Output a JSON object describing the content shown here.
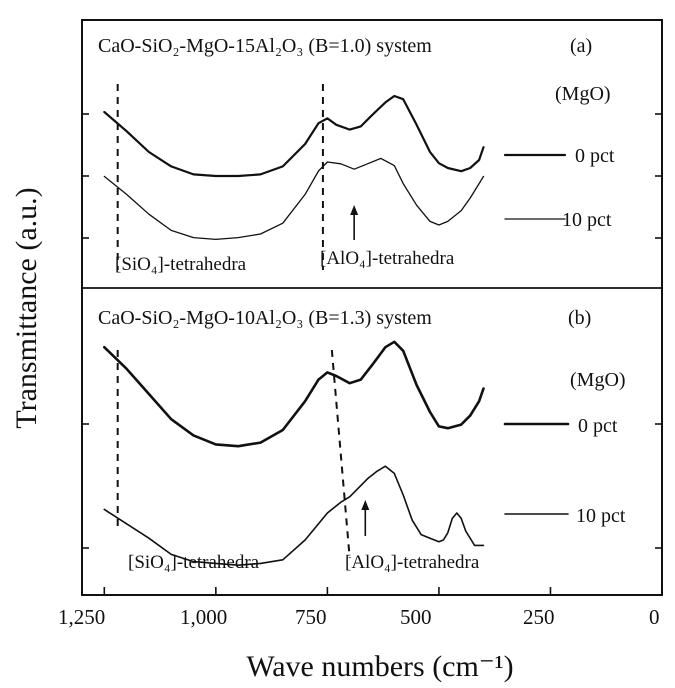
{
  "chart_data": {
    "type": "line",
    "xlabel": "Wave numbers (cm⁻¹)",
    "ylabel": "Transmittance (a.u.)",
    "xlim": [
      1300,
      0
    ],
    "x_reversed": true,
    "x_ticks": [
      "1,250",
      "1,000",
      "750",
      "500",
      "250",
      "0"
    ],
    "x_tick_values": [
      1250,
      1000,
      750,
      500,
      250,
      0
    ],
    "y_ticks_labeled": false,
    "grid": false,
    "panels": [
      {
        "title": "CaO-SiO₂-MgO-15Al₂O₃ (B=1.0) system",
        "tag": "(a)",
        "legend_title": "(MgO)",
        "dashed_markers_x": [
          1220,
          760
        ],
        "annotations": [
          {
            "text": "[SiO₄]-tetrahedra"
          },
          {
            "text": "[AlO₄]-tetrahedra",
            "arrow_x": 690
          }
        ],
        "series": [
          {
            "name": "0 pct",
            "x": [
              1250,
              1200,
              1150,
              1100,
              1050,
              1000,
              950,
              900,
              850,
              800,
              770,
              750,
              730,
              700,
              675,
              650,
              620,
              600,
              580,
              550,
              520,
              500,
              480,
              450,
              430,
              410,
              400
            ],
            "y": [
              0.8,
              0.68,
              0.55,
              0.46,
              0.41,
              0.4,
              0.4,
              0.41,
              0.46,
              0.6,
              0.73,
              0.76,
              0.72,
              0.69,
              0.71,
              0.78,
              0.86,
              0.9,
              0.88,
              0.72,
              0.55,
              0.48,
              0.45,
              0.43,
              0.45,
              0.5,
              0.58
            ]
          },
          {
            "name": "10 pct",
            "x": [
              1250,
              1200,
              1150,
              1100,
              1050,
              1000,
              950,
              900,
              850,
              800,
              770,
              750,
              720,
              690,
              660,
              630,
              600,
              580,
              550,
              520,
              500,
              480,
              450,
              430,
              410,
              400
            ],
            "y": [
              0.52,
              0.42,
              0.31,
              0.22,
              0.18,
              0.17,
              0.18,
              0.2,
              0.26,
              0.42,
              0.55,
              0.6,
              0.59,
              0.56,
              0.59,
              0.62,
              0.58,
              0.48,
              0.36,
              0.27,
              0.25,
              0.27,
              0.33,
              0.4,
              0.48,
              0.52
            ]
          }
        ]
      },
      {
        "title": "CaO-SiO₂-MgO-10Al₂O₃ (B=1.3) system",
        "tag": "(b)",
        "legend_title": "(MgO)",
        "dashed_markers_x": [
          1220,
          740
        ],
        "annotations": [
          {
            "text": "[SiO₄]-tetrahedra"
          },
          {
            "text": "[AlO₄]-tetrahedra",
            "arrow_x": 665
          }
        ],
        "series": [
          {
            "name": "0 pct",
            "x": [
              1250,
              1200,
              1150,
              1100,
              1050,
              1000,
              950,
              900,
              850,
              800,
              770,
              750,
              730,
              700,
              675,
              650,
              620,
              600,
              580,
              550,
              520,
              500,
              480,
              450,
              430,
              410,
              400
            ],
            "y": [
              0.96,
              0.84,
              0.7,
              0.56,
              0.47,
              0.42,
              0.41,
              0.43,
              0.5,
              0.66,
              0.78,
              0.82,
              0.8,
              0.76,
              0.78,
              0.86,
              0.96,
              0.99,
              0.94,
              0.75,
              0.6,
              0.52,
              0.51,
              0.53,
              0.58,
              0.66,
              0.73
            ]
          },
          {
            "name": "10 pct",
            "x": [
              1250,
              1200,
              1150,
              1100,
              1050,
              1000,
              950,
              900,
              850,
              800,
              750,
              720,
              700,
              680,
              660,
              640,
              620,
              600,
              580,
              560,
              540,
              520,
              500,
              490,
              480,
              470,
              460,
              450,
              440,
              420,
              400
            ],
            "y": [
              0.42,
              0.34,
              0.26,
              0.17,
              0.13,
              0.12,
              0.11,
              0.12,
              0.14,
              0.25,
              0.4,
              0.46,
              0.49,
              0.54,
              0.59,
              0.63,
              0.66,
              0.62,
              0.5,
              0.36,
              0.28,
              0.26,
              0.24,
              0.25,
              0.29,
              0.37,
              0.4,
              0.37,
              0.3,
              0.22,
              0.22
            ]
          }
        ]
      }
    ]
  }
}
